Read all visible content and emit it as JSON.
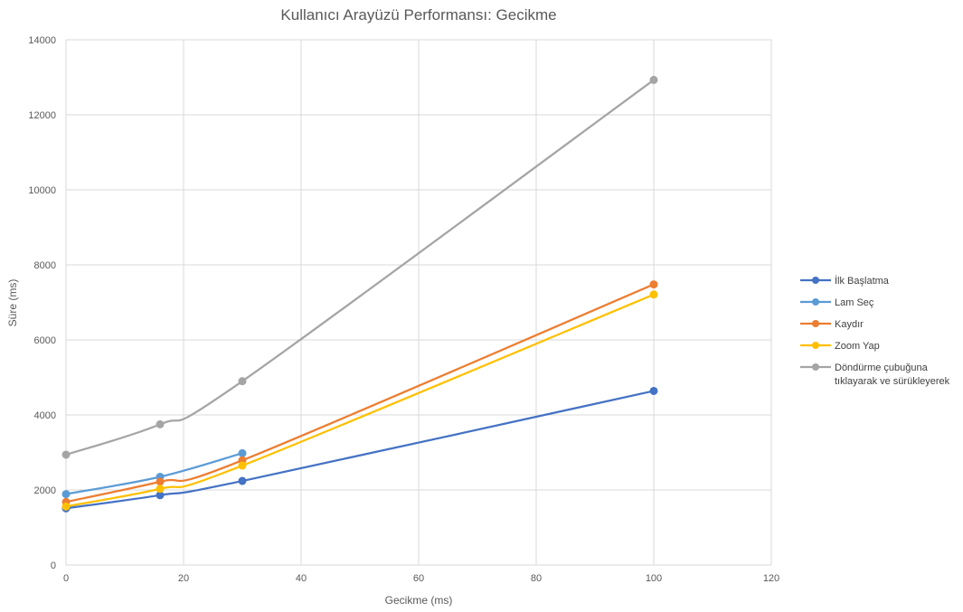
{
  "chart_data": {
    "type": "line",
    "title": "Kullanıcı Arayüzü Performansı: Gecikme",
    "xlabel": "Gecikme (ms)",
    "ylabel": "Süre (ms)",
    "xlim": [
      0,
      120
    ],
    "ylim": [
      0,
      14000
    ],
    "xticks": [
      "0",
      "20",
      "40",
      "60",
      "80",
      "100",
      "120"
    ],
    "yticks": [
      "0",
      "2000",
      "4000",
      "6000",
      "8000",
      "10000",
      "12000",
      "14000"
    ],
    "grid": true,
    "legend_position": "right",
    "series": [
      {
        "name": "İlk Başlatma",
        "color": "#4472C4",
        "points": [
          [
            0,
            1510
          ],
          [
            16,
            1860
          ],
          [
            30,
            2240
          ],
          [
            100,
            4640
          ]
        ]
      },
      {
        "name": "Lam Seç",
        "color": "#5B9BD5",
        "points": [
          [
            0,
            1890
          ],
          [
            16,
            2350
          ],
          [
            30,
            2980
          ]
        ]
      },
      {
        "name": "Kaydır",
        "color": "#ED7D31",
        "points": [
          [
            0,
            1680
          ],
          [
            16,
            2220
          ],
          [
            30,
            2790
          ],
          [
            100,
            7480
          ]
        ]
      },
      {
        "name": "Zoom Yap",
        "color": "#FFC000",
        "points": [
          [
            0,
            1560
          ],
          [
            16,
            2030
          ],
          [
            30,
            2650
          ],
          [
            100,
            7210
          ]
        ]
      },
      {
        "name": "Döndürme çubuğuna tıklayarak ve sürükleyerek",
        "color": "#A5A5A5",
        "points": [
          [
            0,
            2940
          ],
          [
            16,
            3750
          ],
          [
            30,
            4900
          ],
          [
            100,
            12930
          ]
        ]
      }
    ]
  },
  "legend_lines": {
    "s0": [
      "İlk Başlatma"
    ],
    "s1": [
      "Lam Seç"
    ],
    "s2": [
      "Kaydır"
    ],
    "s3": [
      "Zoom Yap"
    ],
    "s4": [
      "Döndürme çubuğuna",
      "tıklayarak ve sürükleyerek"
    ]
  }
}
